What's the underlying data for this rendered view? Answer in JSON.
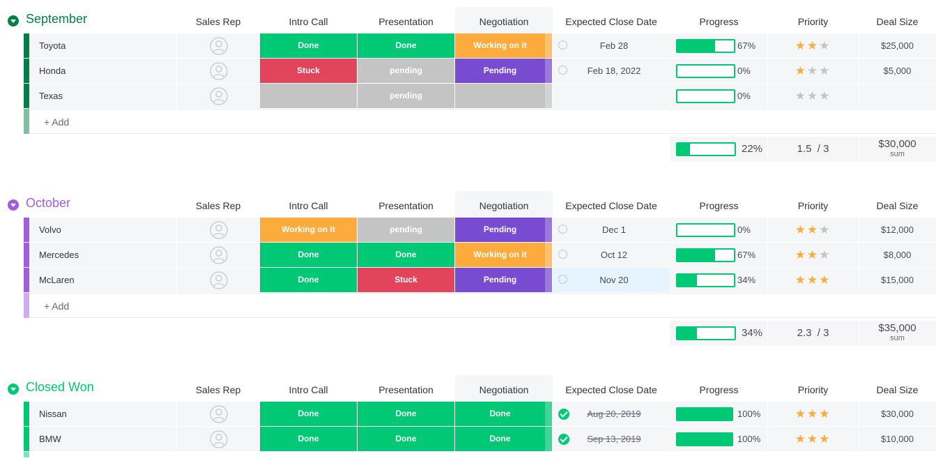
{
  "columns": {
    "sales_rep": "Sales Rep",
    "intro_call": "Intro Call",
    "presentation": "Presentation",
    "negotiation": "Negotiation",
    "close_date": "Expected Close Date",
    "progress": "Progress",
    "priority": "Priority",
    "deal_size": "Deal Size"
  },
  "colors": {
    "done": "#00c875",
    "stuck": "#e2445c",
    "working": "#fdab3d",
    "pending_purple": "#784bd1",
    "pending_grey": "#c4c4c4",
    "september": "#037f4c",
    "october": "#a25ddc",
    "closed_won": "#00c875"
  },
  "icons": {
    "avatar": "person-avatar-icon",
    "toggle": "chevron-down-icon",
    "date_open": "empty-circle-icon",
    "date_done": "check-circle-icon",
    "star": "star-icon"
  },
  "add_label": "+ Add",
  "sum_label": "sum",
  "groups": [
    {
      "title": "September",
      "color": "#037f4c",
      "add_bar_color": "#81bfa5",
      "rows": [
        {
          "name": "Toyota",
          "intro": {
            "label": "Done",
            "status": "done"
          },
          "presentation": {
            "label": "Done",
            "status": "done"
          },
          "negotiation": {
            "label": "Working on it",
            "status": "working"
          },
          "date": "Feb 28",
          "date_done": false,
          "progress": 67,
          "progress_label": "67%",
          "stars": 2,
          "deal": "$25,000"
        },
        {
          "name": "Honda",
          "intro": {
            "label": "Stuck",
            "status": "stuck"
          },
          "presentation": {
            "label": "pending",
            "status": "pending_grey"
          },
          "negotiation": {
            "label": "Pending",
            "status": "pending_purple"
          },
          "date": "Feb 18, 2022",
          "date_done": false,
          "progress": 0,
          "progress_label": "0%",
          "stars": 1,
          "deal": "$5,000"
        },
        {
          "name": "Texas",
          "intro": {
            "label": "",
            "status": "pending_grey"
          },
          "presentation": {
            "label": "pending",
            "status": "pending_grey"
          },
          "negotiation": {
            "label": "",
            "status": "pending_grey"
          },
          "date": "",
          "date_done": null,
          "progress": 0,
          "progress_label": "0%",
          "stars": 0,
          "deal": ""
        }
      ],
      "summary": {
        "progress": 22,
        "progress_label": "22%",
        "priority": "1.5  / 3",
        "deal": "$30,000"
      }
    },
    {
      "title": "October",
      "color": "#a25ddc",
      "add_bar_color": "#d0aeed",
      "rows": [
        {
          "name": "Volvo",
          "intro": {
            "label": "Working on it",
            "status": "working"
          },
          "presentation": {
            "label": "pending",
            "status": "pending_grey"
          },
          "negotiation": {
            "label": "Pending",
            "status": "pending_purple"
          },
          "date": "Dec 1",
          "date_done": false,
          "progress": 0,
          "progress_label": "0%",
          "stars": 2,
          "deal": "$12,000"
        },
        {
          "name": "Mercedes",
          "intro": {
            "label": "Done",
            "status": "done"
          },
          "presentation": {
            "label": "Done",
            "status": "done"
          },
          "negotiation": {
            "label": "Working on it",
            "status": "working"
          },
          "date": "Oct 12",
          "date_done": false,
          "progress": 67,
          "progress_label": "67%",
          "stars": 2,
          "deal": "$8,000"
        },
        {
          "name": "McLaren",
          "intro": {
            "label": "Done",
            "status": "done"
          },
          "presentation": {
            "label": "Stuck",
            "status": "stuck"
          },
          "negotiation": {
            "label": "Pending",
            "status": "pending_purple"
          },
          "date": "Nov 20",
          "date_done": false,
          "date_highlight": true,
          "progress": 34,
          "progress_label": "34%",
          "stars": 3,
          "deal": "$15,000"
        }
      ],
      "summary": {
        "progress": 34,
        "progress_label": "34%",
        "priority": "2.3  / 3",
        "deal": "$35,000"
      }
    },
    {
      "title": "Closed Won",
      "color": "#00c875",
      "add_bar_color": "#80e3ba",
      "rows": [
        {
          "name": "Nissan",
          "intro": {
            "label": "Done",
            "status": "done"
          },
          "presentation": {
            "label": "Done",
            "status": "done"
          },
          "negotiation": {
            "label": "Done",
            "status": "done"
          },
          "date": "Aug 20, 2019",
          "date_done": true,
          "progress": 100,
          "progress_label": "100%",
          "stars": 3,
          "deal": "$30,000"
        },
        {
          "name": "BMW",
          "intro": {
            "label": "Done",
            "status": "done"
          },
          "presentation": {
            "label": "Done",
            "status": "done"
          },
          "negotiation": {
            "label": "Done",
            "status": "done"
          },
          "date": "Sep 13, 2019",
          "date_done": true,
          "progress": 100,
          "progress_label": "100%",
          "stars": 3,
          "deal": "$10,000"
        }
      ]
    }
  ]
}
